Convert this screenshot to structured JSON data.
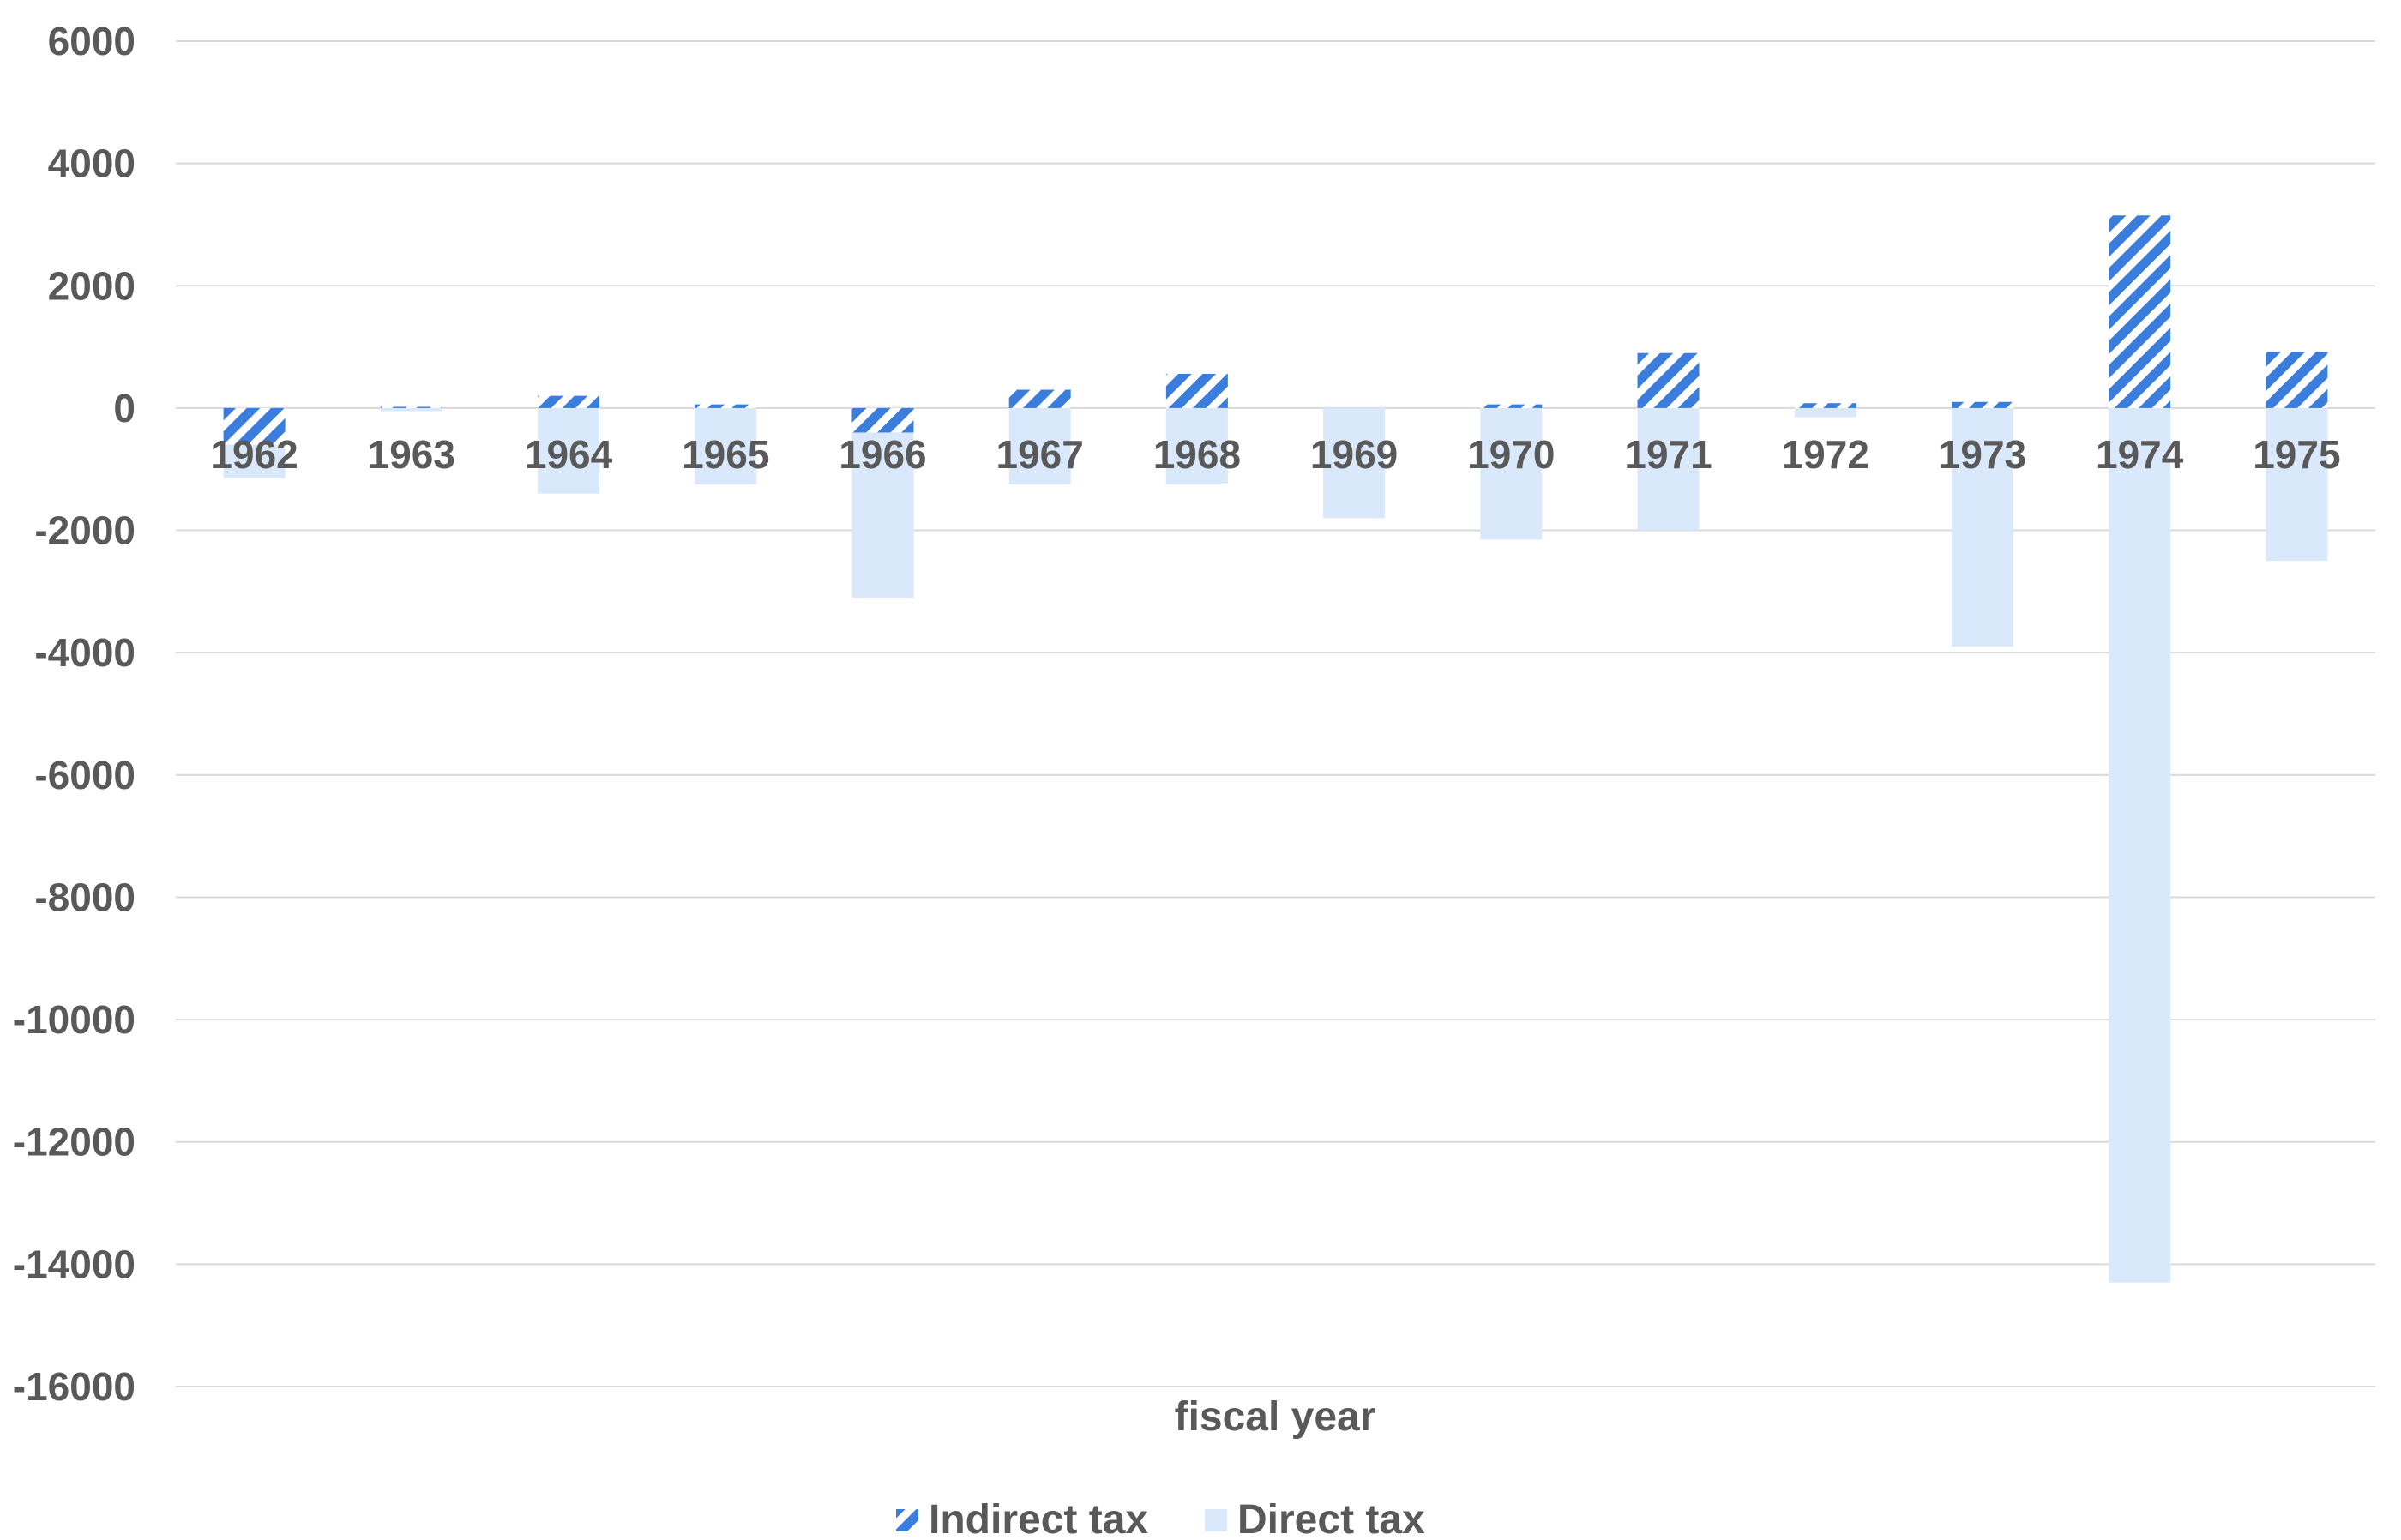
{
  "chart_data": {
    "type": "bar",
    "categories": [
      "1962",
      "1963",
      "1964",
      "1965",
      "1966",
      "1967",
      "1968",
      "1969",
      "1970",
      "1971",
      "1972",
      "1973",
      "1974",
      "1975"
    ],
    "series": [
      {
        "name": "Indirect tax",
        "color": "#3b7ddd",
        "pattern": "diagonal-hatch",
        "values": [
          -600,
          20,
          200,
          60,
          -400,
          300,
          560,
          0,
          60,
          900,
          80,
          100,
          3150,
          920
        ]
      },
      {
        "name": "Direct tax",
        "color": "#dae8fc",
        "pattern": "solid",
        "values": [
          -1150,
          -50,
          -1400,
          -1250,
          -3100,
          -1250,
          -1250,
          -1800,
          -2150,
          -2000,
          -150,
          -3900,
          -14300,
          -2500
        ]
      }
    ],
    "yticks": [
      "6000",
      "4000",
      "2000",
      "0",
      "-2000",
      "-4000",
      "-6000",
      "-8000",
      "-10000",
      "-12000",
      "-14000",
      "-16000"
    ],
    "ylim": [
      -16000,
      6000
    ],
    "xlabel": "fiscal year",
    "ylabel": "",
    "title": "",
    "grid": true,
    "legend": "bottom-center"
  }
}
